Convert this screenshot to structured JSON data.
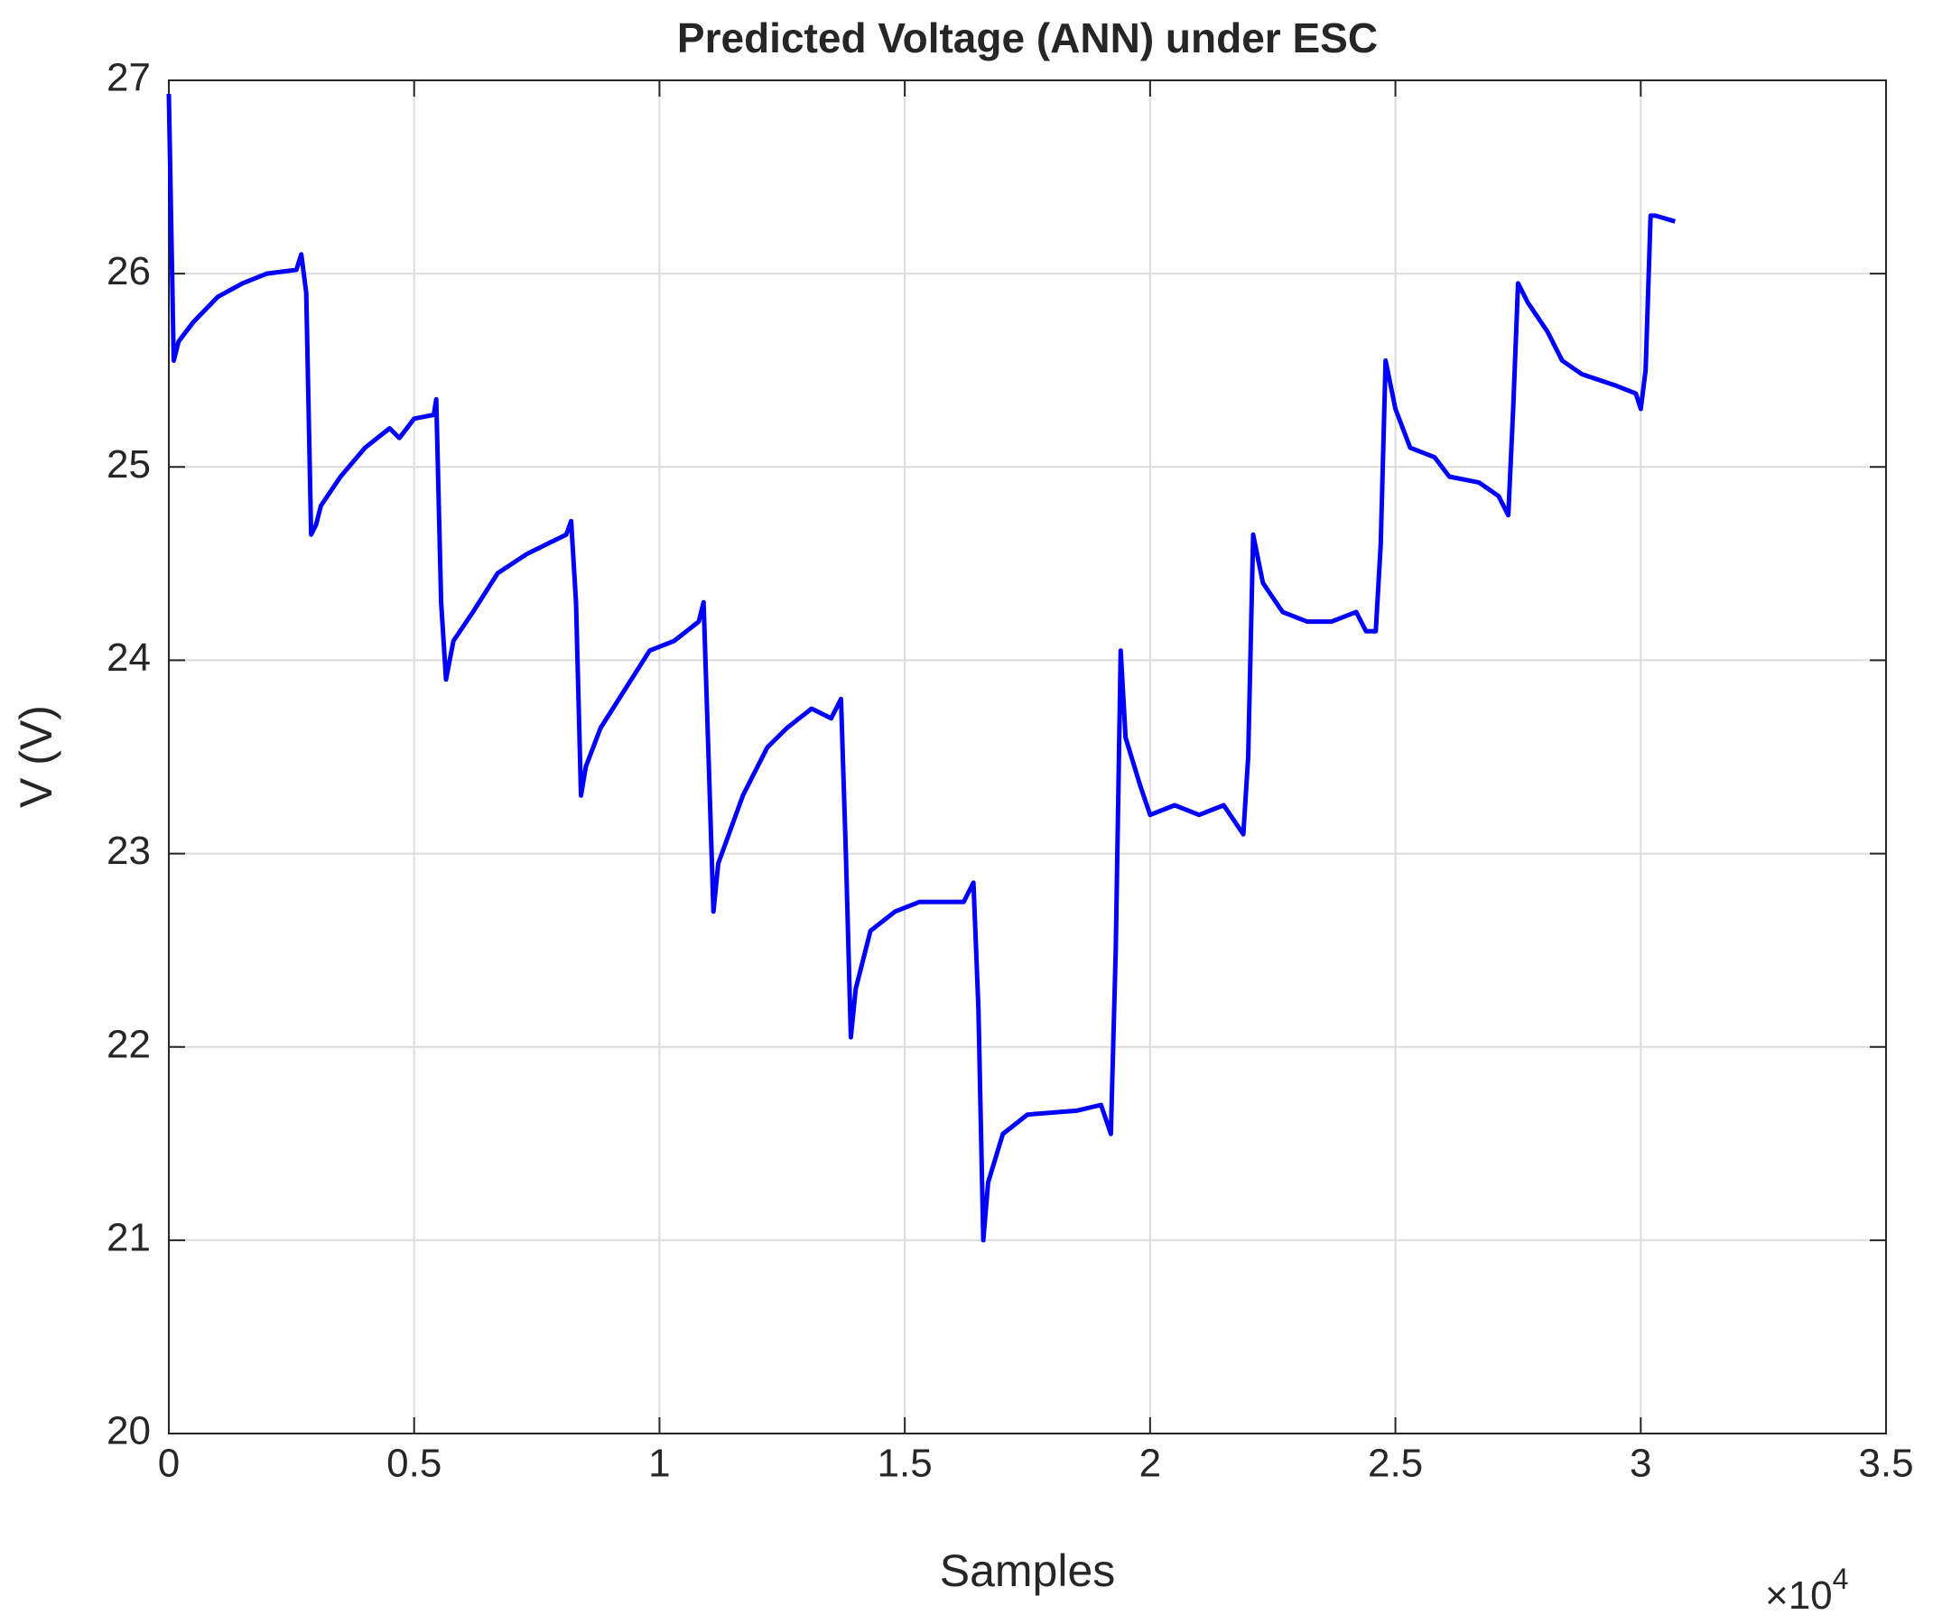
{
  "chart_data": {
    "type": "line",
    "title": "Predicted Voltage (ANN) under ESC",
    "xlabel": "Samples",
    "ylabel": "V (V)",
    "xtick_multiplier": {
      "base": "×10",
      "exponent": "4"
    },
    "color": "#0000ff",
    "grid": true,
    "xlim": [
      0,
      35000
    ],
    "ylim": [
      20,
      27
    ],
    "xticks": [
      0,
      {
        "value": 5000,
        "label": "0.5"
      },
      {
        "value": 10000,
        "label": "1"
      },
      {
        "value": 15000,
        "label": "1.5"
      },
      {
        "value": 20000,
        "label": "2"
      },
      {
        "value": 25000,
        "label": "2.5"
      },
      {
        "value": 30000,
        "label": "3"
      },
      {
        "value": 35000,
        "label": "3.5"
      }
    ],
    "yticks": [
      20,
      21,
      22,
      23,
      24,
      25,
      26,
      27
    ],
    "x": [
      0,
      100,
      200,
      500,
      1000,
      1500,
      2000,
      2600,
      2700,
      2800,
      2900,
      3000,
      3100,
      3500,
      4000,
      4500,
      4700,
      5000,
      5400,
      5450,
      5550,
      5650,
      5800,
      6200,
      6700,
      7300,
      7700,
      8100,
      8200,
      8300,
      8400,
      8500,
      8800,
      9300,
      9800,
      10300,
      10800,
      10900,
      11000,
      11100,
      11200,
      11700,
      12200,
      12600,
      13100,
      13500,
      13700,
      13800,
      13900,
      14000,
      14300,
      14800,
      15300,
      15800,
      16200,
      16400,
      16500,
      16600,
      16700,
      17000,
      17500,
      18500,
      19000,
      19200,
      19300,
      19400,
      19500,
      19800,
      20000,
      20500,
      21000,
      21500,
      21900,
      22000,
      22100,
      22300,
      22700,
      23200,
      23700,
      24200,
      24400,
      24600,
      24700,
      24800,
      25000,
      25300,
      25800,
      26100,
      26700,
      27100,
      27300,
      27400,
      27500,
      27700,
      28100,
      28400,
      28800,
      29500,
      29900,
      30000,
      30100,
      30200,
      30300,
      30700
    ],
    "values": [
      26.93,
      25.55,
      25.65,
      25.75,
      25.88,
      25.95,
      26.0,
      26.02,
      26.1,
      25.9,
      24.65,
      24.7,
      24.8,
      24.95,
      25.1,
      25.2,
      25.15,
      25.25,
      25.27,
      25.35,
      24.3,
      23.9,
      24.1,
      24.25,
      24.45,
      24.55,
      24.6,
      24.65,
      24.72,
      24.3,
      23.3,
      23.45,
      23.65,
      23.85,
      24.05,
      24.1,
      24.2,
      24.3,
      23.5,
      22.7,
      22.95,
      23.3,
      23.55,
      23.65,
      23.75,
      23.7,
      23.8,
      23.0,
      22.05,
      22.3,
      22.6,
      22.7,
      22.75,
      22.75,
      22.75,
      22.85,
      22.2,
      21.0,
      21.3,
      21.55,
      21.65,
      21.67,
      21.7,
      21.55,
      22.5,
      24.05,
      23.6,
      23.35,
      23.2,
      23.25,
      23.2,
      23.25,
      23.1,
      23.5,
      24.65,
      24.4,
      24.25,
      24.2,
      24.2,
      24.25,
      24.15,
      24.15,
      24.6,
      25.55,
      25.3,
      25.1,
      25.05,
      24.95,
      24.92,
      24.85,
      24.75,
      25.3,
      25.95,
      25.85,
      25.7,
      25.55,
      25.48,
      25.42,
      25.38,
      25.3,
      25.5,
      26.3,
      26.3,
      26.27
    ]
  }
}
